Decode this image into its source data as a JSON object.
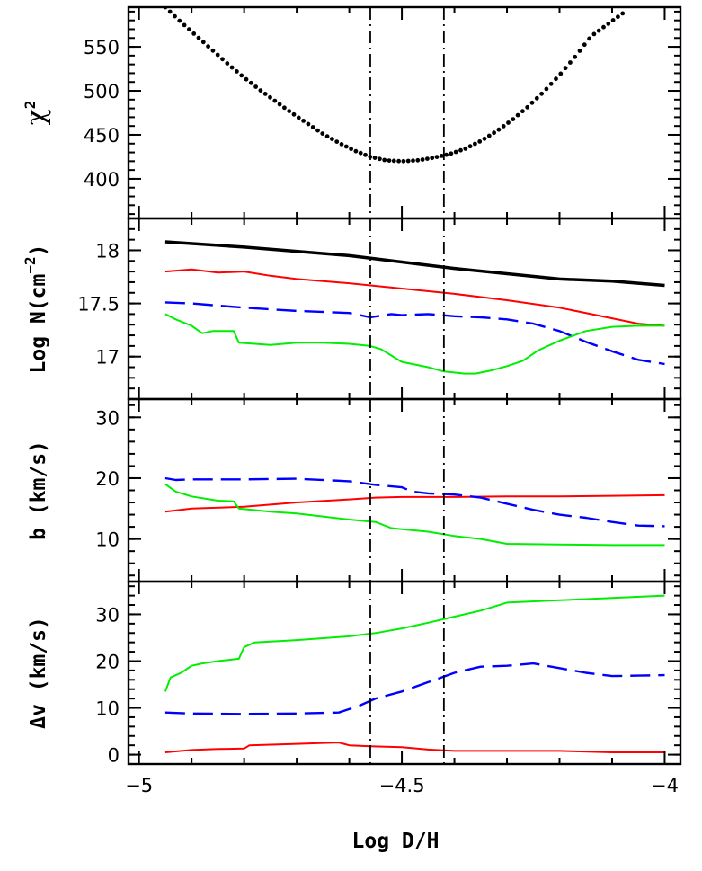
{
  "chart_data": {
    "type": "line",
    "xlabel": "Log D/H",
    "xlim": [
      -5.02,
      -3.97
    ],
    "xticks": [
      -5,
      -4.5,
      -4
    ],
    "xtick_labels": [
      "−5",
      "−4.5",
      "−4"
    ],
    "reference_lines_x": [
      -4.56,
      -4.42
    ],
    "colors": {
      "black": "#000000",
      "red": "#ff0000",
      "blue": "#0000ff",
      "green": "#00ee00"
    },
    "panels": [
      {
        "id": "chi2",
        "ylabel": "χ",
        "ylabel_sup": "2",
        "ylim": [
          355,
          595
        ],
        "yticks": [
          400,
          450,
          500,
          550
        ],
        "ytick_labels": [
          "400",
          "450",
          "500",
          "550"
        ],
        "series": [
          {
            "color": "black",
            "style": "dotted",
            "x": [
              -4.95,
              -4.92,
              -4.89,
              -4.86,
              -4.83,
              -4.8,
              -4.77,
              -4.74,
              -4.71,
              -4.68,
              -4.65,
              -4.62,
              -4.59,
              -4.56,
              -4.53,
              -4.5,
              -4.47,
              -4.44,
              -4.41,
              -4.38,
              -4.35,
              -4.32,
              -4.29,
              -4.26,
              -4.23,
              -4.2,
              -4.17,
              -4.14,
              -4.11,
              -4.08
            ],
            "y": [
              595,
              578,
              562,
              546,
              530,
              515,
              501,
              488,
              475,
              463,
              451,
              441,
              432,
              425,
              421,
              420,
              421,
              424,
              428,
              434,
              443,
              454,
              467,
              482,
              499,
              518,
              539,
              562,
              575,
              588
            ]
          }
        ]
      },
      {
        "id": "logN",
        "ylabel": "Log N(cm",
        "ylabel_sup": "−2",
        "ylabel_tail": ")",
        "ylim": [
          16.6,
          18.3
        ],
        "yticks": [
          17,
          17.5,
          18
        ],
        "ytick_labels": [
          "17",
          "17.5",
          "18"
        ],
        "series": [
          {
            "color": "black",
            "style": "solid",
            "width": 3.5,
            "x": [
              -4.95,
              -4.8,
              -4.6,
              -4.5,
              -4.4,
              -4.3,
              -4.2,
              -4.1,
              -4.0
            ],
            "y": [
              18.08,
              18.03,
              17.95,
              17.89,
              17.83,
              17.78,
              17.73,
              17.71,
              17.67
            ]
          },
          {
            "color": "red",
            "style": "solid",
            "width": 2,
            "x": [
              -4.95,
              -4.9,
              -4.85,
              -4.8,
              -4.75,
              -4.7,
              -4.6,
              -4.5,
              -4.4,
              -4.3,
              -4.2,
              -4.1,
              -4.05,
              -4.0
            ],
            "y": [
              17.8,
              17.82,
              17.79,
              17.8,
              17.76,
              17.73,
              17.69,
              17.64,
              17.59,
              17.53,
              17.46,
              17.36,
              17.31,
              17.29
            ]
          },
          {
            "color": "blue",
            "style": "dashed",
            "width": 2.4,
            "x": [
              -4.95,
              -4.9,
              -4.8,
              -4.7,
              -4.6,
              -4.56,
              -4.52,
              -4.5,
              -4.45,
              -4.4,
              -4.35,
              -4.3,
              -4.25,
              -4.2,
              -4.15,
              -4.1,
              -4.05,
              -4.0
            ],
            "y": [
              17.51,
              17.5,
              17.46,
              17.43,
              17.41,
              17.37,
              17.4,
              17.39,
              17.4,
              17.38,
              17.37,
              17.35,
              17.31,
              17.24,
              17.14,
              17.05,
              16.97,
              16.93
            ]
          },
          {
            "color": "green",
            "style": "solid",
            "width": 2,
            "x": [
              -4.95,
              -4.93,
              -4.9,
              -4.88,
              -4.86,
              -4.82,
              -4.81,
              -4.75,
              -4.7,
              -4.65,
              -4.6,
              -4.56,
              -4.54,
              -4.5,
              -4.45,
              -4.42,
              -4.38,
              -4.36,
              -4.33,
              -4.3,
              -4.27,
              -4.24,
              -4.2,
              -4.15,
              -4.1,
              -4.05,
              -4.0
            ],
            "y": [
              17.4,
              17.35,
              17.29,
              17.22,
              17.24,
              17.24,
              17.13,
              17.11,
              17.13,
              17.13,
              17.12,
              17.1,
              17.07,
              16.95,
              16.9,
              16.86,
              16.84,
              16.84,
              16.87,
              16.91,
              16.96,
              17.06,
              17.15,
              17.24,
              17.28,
              17.29,
              17.29
            ]
          }
        ]
      },
      {
        "id": "b",
        "ylabel": "b (km/s)",
        "ylim": [
          3,
          33
        ],
        "yticks": [
          10,
          20,
          30
        ],
        "ytick_labels": [
          "10",
          "20",
          "30"
        ],
        "series": [
          {
            "color": "red",
            "style": "solid",
            "width": 2,
            "x": [
              -4.95,
              -4.9,
              -4.8,
              -4.7,
              -4.6,
              -4.55,
              -4.5,
              -4.4,
              -4.3,
              -4.2,
              -4.1,
              -4.0
            ],
            "y": [
              14.5,
              15.0,
              15.3,
              16.0,
              16.5,
              16.8,
              16.9,
              16.9,
              17.0,
              17.0,
              17.1,
              17.2
            ]
          },
          {
            "color": "blue",
            "style": "dashed",
            "width": 2.4,
            "x": [
              -4.95,
              -4.93,
              -4.9,
              -4.8,
              -4.7,
              -4.6,
              -4.55,
              -4.5,
              -4.48,
              -4.45,
              -4.4,
              -4.35,
              -4.3,
              -4.25,
              -4.2,
              -4.15,
              -4.1,
              -4.05,
              -4.0
            ],
            "y": [
              20.0,
              19.7,
              19.8,
              19.8,
              19.9,
              19.5,
              18.9,
              18.5,
              17.8,
              17.5,
              17.3,
              16.8,
              15.8,
              14.8,
              14.0,
              13.5,
              12.8,
              12.2,
              12.1
            ]
          },
          {
            "color": "green",
            "style": "solid",
            "width": 2,
            "x": [
              -4.95,
              -4.93,
              -4.9,
              -4.85,
              -4.82,
              -4.81,
              -4.75,
              -4.7,
              -4.6,
              -4.55,
              -4.52,
              -4.5,
              -4.45,
              -4.4,
              -4.35,
              -4.3,
              -4.2,
              -4.1,
              -4.0
            ],
            "y": [
              19.0,
              17.8,
              17.0,
              16.3,
              16.2,
              15.0,
              14.5,
              14.2,
              13.2,
              12.8,
              11.8,
              11.6,
              11.2,
              10.5,
              10.0,
              9.2,
              9.1,
              9.0,
              9.0
            ]
          }
        ]
      },
      {
        "id": "dv",
        "ylabel": "Δv (km/s)",
        "ylim": [
          -2,
          37
        ],
        "yticks": [
          0,
          10,
          20,
          30
        ],
        "ytick_labels": [
          "0",
          "10",
          "20",
          "30"
        ],
        "series": [
          {
            "color": "red",
            "style": "solid",
            "width": 2,
            "x": [
              -4.95,
              -4.9,
              -4.85,
              -4.8,
              -4.79,
              -4.7,
              -4.65,
              -4.62,
              -4.6,
              -4.56,
              -4.5,
              -4.45,
              -4.4,
              -4.3,
              -4.2,
              -4.1,
              -4.0
            ],
            "y": [
              0.5,
              1.0,
              1.2,
              1.3,
              2.0,
              2.3,
              2.5,
              2.6,
              2.0,
              1.8,
              1.6,
              1.1,
              0.8,
              0.8,
              0.8,
              0.5,
              0.5
            ]
          },
          {
            "color": "blue",
            "style": "dashed",
            "width": 2.4,
            "x": [
              -4.95,
              -4.9,
              -4.8,
              -4.7,
              -4.62,
              -4.58,
              -4.55,
              -4.5,
              -4.45,
              -4.4,
              -4.35,
              -4.3,
              -4.25,
              -4.2,
              -4.15,
              -4.1,
              -4.05,
              -4.0
            ],
            "y": [
              9.0,
              8.8,
              8.7,
              8.8,
              9.0,
              10.5,
              12.0,
              13.5,
              15.5,
              17.5,
              18.8,
              19.0,
              19.5,
              18.5,
              17.5,
              16.8,
              16.9,
              17.0
            ]
          },
          {
            "color": "green",
            "style": "solid",
            "width": 2,
            "x": [
              -4.95,
              -4.94,
              -4.92,
              -4.9,
              -4.88,
              -4.85,
              -4.81,
              -4.8,
              -4.78,
              -4.7,
              -4.6,
              -4.55,
              -4.5,
              -4.45,
              -4.4,
              -4.35,
              -4.3,
              -4.2,
              -4.1,
              -4.0
            ],
            "y": [
              13.5,
              16.5,
              17.5,
              19.0,
              19.5,
              20.0,
              20.5,
              23.0,
              24.0,
              24.5,
              25.3,
              26.0,
              27.0,
              28.2,
              29.5,
              30.8,
              32.5,
              33.0,
              33.5,
              34.0
            ]
          }
        ]
      }
    ]
  }
}
